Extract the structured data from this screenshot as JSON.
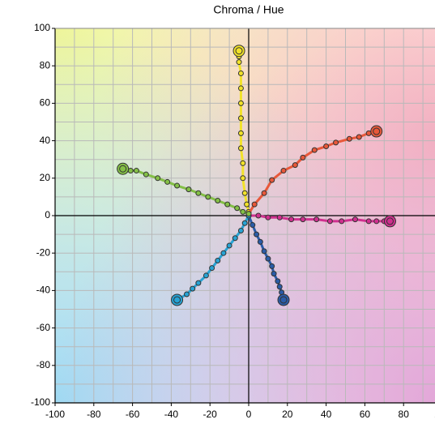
{
  "chart_data": {
    "type": "line",
    "title": "Chroma / Hue",
    "xlim": [
      -100,
      100
    ],
    "ylim": [
      -100,
      100
    ],
    "xticks": [
      -100,
      -80,
      -60,
      -40,
      -20,
      0,
      20,
      40,
      60,
      80,
      100
    ],
    "yticks": [
      -100,
      -80,
      -60,
      -40,
      -20,
      0,
      20,
      40,
      60,
      80,
      100
    ],
    "grid": true,
    "series": [
      {
        "color": "#f2e22a",
        "x": [
          0,
          -1,
          -2,
          -3,
          -3,
          -4,
          -4,
          -4,
          -4,
          -4,
          -4,
          -5,
          -5,
          -5
        ],
        "y": [
          2,
          6,
          12,
          20,
          28,
          36,
          44,
          52,
          60,
          68,
          76,
          82,
          85,
          88
        ]
      },
      {
        "color": "#e8583a",
        "x": [
          0,
          3,
          8,
          12,
          18,
          24,
          28,
          34,
          40,
          45,
          52,
          57,
          62,
          66
        ],
        "y": [
          1,
          6,
          12,
          19,
          24,
          27,
          31,
          35,
          37,
          39,
          41,
          42,
          44,
          45
        ]
      },
      {
        "color": "#d0308f",
        "x": [
          0,
          5,
          10,
          16,
          22,
          28,
          35,
          42,
          48,
          55,
          62,
          66,
          70,
          73
        ],
        "y": [
          0,
          0,
          -1,
          -1,
          -2,
          -2,
          -2,
          -3,
          -3,
          -2,
          -3,
          -3,
          -3,
          -3
        ]
      },
      {
        "color": "#2a5ca8",
        "x": [
          0,
          2,
          4,
          6,
          8,
          10,
          12,
          13,
          15,
          16,
          17,
          18
        ],
        "y": [
          0,
          -5,
          -10,
          -14,
          -19,
          -23,
          -27,
          -31,
          -35,
          -38,
          -41,
          -45
        ]
      },
      {
        "color": "#27a3d4",
        "x": [
          0,
          -2,
          -4,
          -7,
          -10,
          -13,
          -16,
          -19,
          -22,
          -26,
          -29,
          -32,
          -37
        ],
        "y": [
          0,
          -4,
          -8,
          -12,
          -16,
          -20,
          -24,
          -28,
          -32,
          -36,
          -39,
          -42,
          -45
        ]
      },
      {
        "color": "#84c046",
        "x": [
          0,
          -3,
          -6,
          -11,
          -16,
          -21,
          -26,
          -31,
          -37,
          -42,
          -47,
          -53,
          -58,
          -61,
          -65
        ],
        "y": [
          1,
          2,
          4,
          6,
          8,
          10,
          12,
          14,
          16,
          18,
          20,
          22,
          24,
          24,
          25
        ]
      }
    ]
  }
}
